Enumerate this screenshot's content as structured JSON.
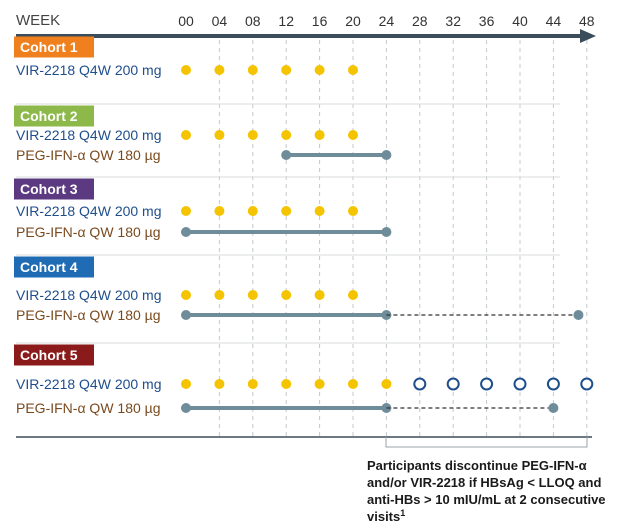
{
  "axis": {
    "label": "WEEK",
    "ticks": [
      "00",
      "04",
      "08",
      "12",
      "16",
      "20",
      "24",
      "28",
      "32",
      "36",
      "40",
      "44",
      "48"
    ]
  },
  "colors": {
    "axis": "#3b4d5a",
    "vir_dose": "#f5c400",
    "vir_open_dose": "#1f4e8c",
    "peg_bar": "#6f8c9a",
    "vir_text": "#1f4e8c",
    "peg_text": "#7a4a1e"
  },
  "cohorts": [
    {
      "name": "Cohort 1",
      "color": "#f0801e",
      "vir_label": "VIR-2218 Q4W 200 mg",
      "vir_dose_weeks": [
        0,
        4,
        8,
        12,
        16,
        20
      ],
      "vir_open_weeks": [],
      "peg_label": null,
      "peg_start_week": null,
      "peg_end_week": null,
      "peg_dashed_end_week": null
    },
    {
      "name": "Cohort 2",
      "color": "#8db84a",
      "vir_label": "VIR-2218 Q4W 200 mg",
      "vir_dose_weeks": [
        0,
        4,
        8,
        12,
        16,
        20
      ],
      "vir_open_weeks": [],
      "peg_label": "PEG-IFN-α QW 180 µg",
      "peg_start_week": 12,
      "peg_end_week": 24,
      "peg_dashed_end_week": null
    },
    {
      "name": "Cohort 3",
      "color": "#5c3a82",
      "vir_label": "VIR-2218 Q4W 200 mg",
      "vir_dose_weeks": [
        0,
        4,
        8,
        12,
        16,
        20
      ],
      "vir_open_weeks": [],
      "peg_label": "PEG-IFN-α QW 180 µg",
      "peg_start_week": 0,
      "peg_end_week": 24,
      "peg_dashed_end_week": null
    },
    {
      "name": "Cohort 4",
      "color": "#1f6cb4",
      "vir_label": "VIR-2218 Q4W 200 mg",
      "vir_dose_weeks": [
        0,
        4,
        8,
        12,
        16,
        20
      ],
      "vir_open_weeks": [],
      "peg_label": "PEG-IFN-α QW 180 µg",
      "peg_start_week": 0,
      "peg_end_week": 24,
      "peg_dashed_end_week": 47
    },
    {
      "name": "Cohort 5",
      "color": "#8b1a1a",
      "vir_label": "VIR-2218 Q4W 200 mg",
      "vir_dose_weeks": [
        0,
        4,
        8,
        12,
        16,
        20,
        24
      ],
      "vir_open_weeks": [
        28,
        32,
        36,
        40,
        44,
        48
      ],
      "peg_label": "PEG-IFN-α QW 180 µg",
      "peg_start_week": 0,
      "peg_end_week": 24,
      "peg_dashed_end_week": 44
    }
  ],
  "note": {
    "lines": [
      "Participants discontinue PEG-IFN-α",
      "and/or VIR-2218 if HBsAg < LLOQ and",
      "anti-HBs > 10 mIU/mL at 2 consecutive",
      "visits"
    ],
    "superscript": "1"
  }
}
